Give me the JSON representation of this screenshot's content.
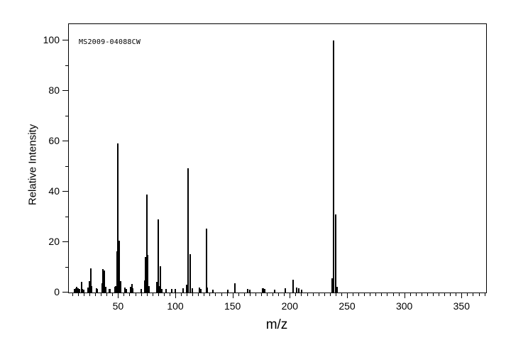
{
  "chart_data": {
    "type": "bar",
    "subtype": "mass-spectrum-stick-plot",
    "annotation": "MS2009-04088CW",
    "xlabel": "m/z",
    "ylabel": "Relative Intensity",
    "xlim": [
      7,
      371.5
    ],
    "ylim": [
      0,
      106.5
    ],
    "x_major_ticks": [
      50,
      100,
      150,
      200,
      250,
      300,
      350
    ],
    "x_minor_tick_step": 5,
    "x_minor_tick_range": [
      10,
      370
    ],
    "y_major_ticks": [
      0,
      20,
      40,
      60,
      80,
      100
    ],
    "y_minor_ticks": [
      10,
      30,
      50,
      70,
      90
    ],
    "axis_color": "#000000",
    "bar_color": "#000000",
    "background_color": "#ffffff",
    "peaks": [
      [
        12,
        1.3
      ],
      [
        13,
        1.8
      ],
      [
        14,
        2.2
      ],
      [
        15,
        1.8
      ],
      [
        16,
        1.3
      ],
      [
        18,
        4.2
      ],
      [
        19,
        1.4
      ],
      [
        20,
        1.2
      ],
      [
        24,
        2.0
      ],
      [
        25,
        4.4
      ],
      [
        26,
        9.6
      ],
      [
        27,
        2.6
      ],
      [
        31,
        1.6
      ],
      [
        32,
        1.4
      ],
      [
        36,
        3.6
      ],
      [
        37,
        9.4
      ],
      [
        38,
        8.7
      ],
      [
        39,
        2.2
      ],
      [
        42,
        1.3
      ],
      [
        43,
        1.3
      ],
      [
        47,
        2.3
      ],
      [
        48,
        2.6
      ],
      [
        49,
        16.3
      ],
      [
        50,
        59.2
      ],
      [
        51,
        20.6
      ],
      [
        52,
        4.4
      ],
      [
        56,
        2.0
      ],
      [
        57,
        1.3
      ],
      [
        61,
        2.4
      ],
      [
        62,
        3.3
      ],
      [
        63,
        1.8
      ],
      [
        70,
        1.4
      ],
      [
        73,
        4.8
      ],
      [
        74,
        14.1
      ],
      [
        75,
        38.8
      ],
      [
        76,
        15.0
      ],
      [
        77,
        2.6
      ],
      [
        84,
        4.2
      ],
      [
        85,
        29.1
      ],
      [
        86,
        2.5
      ],
      [
        87,
        10.3
      ],
      [
        88,
        1.5
      ],
      [
        92,
        1.5
      ],
      [
        97,
        1.3
      ],
      [
        100,
        1.5
      ],
      [
        107,
        1.8
      ],
      [
        110,
        3.0
      ],
      [
        111,
        49.3
      ],
      [
        113,
        15.2
      ],
      [
        115,
        1.8
      ],
      [
        121,
        1.9
      ],
      [
        122,
        1.5
      ],
      [
        127,
        25.4
      ],
      [
        128,
        2.0
      ],
      [
        133,
        1.1
      ],
      [
        146,
        1.2
      ],
      [
        152,
        3.8
      ],
      [
        163,
        1.5
      ],
      [
        165,
        1.2
      ],
      [
        176,
        1.7
      ],
      [
        177,
        1.7
      ],
      [
        178,
        1.3
      ],
      [
        187,
        1.2
      ],
      [
        196,
        1.7
      ],
      [
        203,
        5.1
      ],
      [
        206,
        1.9
      ],
      [
        208,
        1.6
      ],
      [
        210,
        1.2
      ],
      [
        237,
        5.6
      ],
      [
        238,
        100.0
      ],
      [
        240,
        31.0
      ],
      [
        241,
        2.4
      ]
    ]
  }
}
